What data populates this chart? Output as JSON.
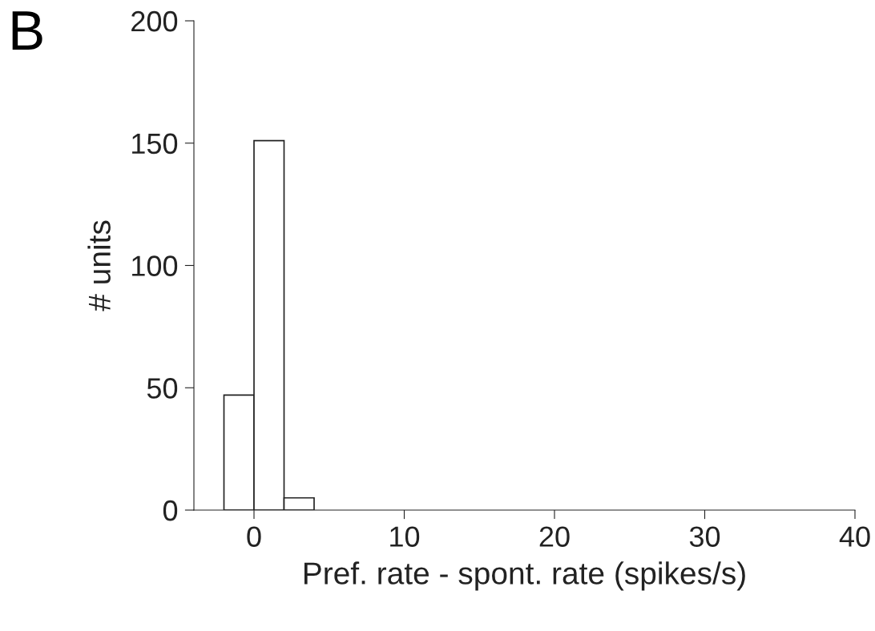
{
  "chart_data": {
    "type": "histogram",
    "title": "B",
    "xlabel": "Pref. rate - spont. rate (spikes/s)",
    "ylabel": "# units",
    "bins": [
      -2,
      0,
      2,
      4
    ],
    "values": [
      47,
      151,
      5
    ],
    "color": "#ffffff",
    "xlim": [
      -4,
      40
    ],
    "xticks": [
      0,
      10,
      20,
      30,
      40
    ],
    "ylim": [
      0,
      200
    ],
    "yticks": [
      0,
      50,
      100,
      150,
      200
    ],
    "grid": false
  }
}
